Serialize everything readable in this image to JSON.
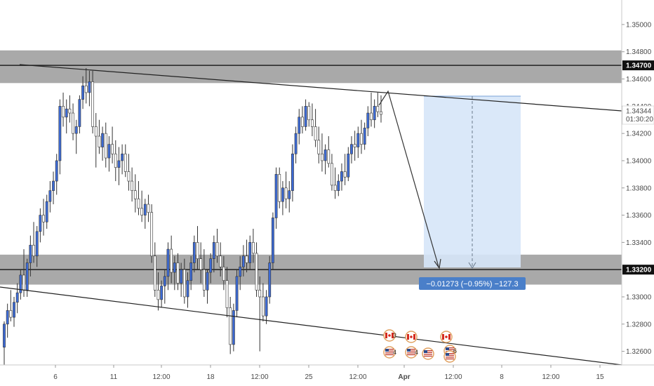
{
  "chart_data": {
    "type": "candlestick",
    "x_labels": [
      "6",
      "11",
      "12:00",
      "18",
      "12:00",
      "25",
      "12:00",
      "Apr",
      "12:00",
      "8",
      "12:00",
      "15"
    ],
    "y_ticks": [
      "1.35000",
      "1.34800",
      "1.34600",
      "1.34400",
      "1.34200",
      "1.34000",
      "1.33800",
      "1.33600",
      "1.33400",
      "1.33000",
      "1.32800",
      "1.32600"
    ],
    "ylim": [
      1.325,
      1.3518
    ],
    "resistance_zone": [
      1.3457,
      1.3481
    ],
    "support_zone": [
      1.3309,
      1.3331
    ],
    "resistance_line": 1.347,
    "support_line": 1.332,
    "resistance_label": "1.34700",
    "support_label": "1.33200",
    "current_price_label": "1.34344",
    "countdown_label": "01:30:20",
    "position_box_label": "−0.01273 (−0.95%) −127.3",
    "event_counts": [
      "3",
      "4",
      "4",
      "6"
    ],
    "colors": {
      "up": "#3d6bd6",
      "down": "#4a4a4a",
      "zone": "#8c8c8c",
      "target_box": "#d6e6f8",
      "label_box": "#4a7fc9",
      "price_label_bg": "#111111"
    }
  },
  "candles": [
    [
      1.3263,
      1.3282,
      1.325,
      1.328
    ],
    [
      1.328,
      1.3295,
      1.327,
      1.329
    ],
    [
      1.329,
      1.3305,
      1.3282,
      1.3285
    ],
    [
      1.3285,
      1.33,
      1.3278,
      1.3296
    ],
    [
      1.3296,
      1.331,
      1.3288,
      1.3303
    ],
    [
      1.3303,
      1.332,
      1.3298,
      1.3316
    ],
    [
      1.3316,
      1.3335,
      1.33,
      1.3305
    ],
    [
      1.3305,
      1.3328,
      1.33,
      1.3325
    ],
    [
      1.3325,
      1.3345,
      1.3315,
      1.3338
    ],
    [
      1.3338,
      1.3355,
      1.3325,
      1.333
    ],
    [
      1.333,
      1.3352,
      1.3322,
      1.3348
    ],
    [
      1.3348,
      1.3365,
      1.334,
      1.336
    ],
    [
      1.336,
      1.3372,
      1.3345,
      1.3355
    ],
    [
      1.3355,
      1.3375,
      1.335,
      1.337
    ],
    [
      1.337,
      1.3385,
      1.3362,
      1.3378
    ],
    [
      1.3378,
      1.3392,
      1.3368,
      1.3385
    ],
    [
      1.3385,
      1.3405,
      1.3375,
      1.34
    ],
    [
      1.34,
      1.3445,
      1.339,
      1.344
    ],
    [
      1.344,
      1.345,
      1.3425,
      1.3432
    ],
    [
      1.3432,
      1.3445,
      1.342,
      1.3438
    ],
    [
      1.3438,
      1.3448,
      1.3428,
      1.3435
    ],
    [
      1.3435,
      1.3442,
      1.3415,
      1.342
    ],
    [
      1.342,
      1.343,
      1.3405,
      1.3425
    ],
    [
      1.3425,
      1.3448,
      1.342,
      1.3445
    ],
    [
      1.3445,
      1.3462,
      1.3438,
      1.3455
    ],
    [
      1.3455,
      1.3468,
      1.3442,
      1.345
    ],
    [
      1.345,
      1.3466,
      1.344,
      1.3458
    ],
    [
      1.3458,
      1.3466,
      1.342,
      1.3425
    ],
    [
      1.3425,
      1.3435,
      1.3395,
      1.3418
    ],
    [
      1.3418,
      1.343,
      1.3405,
      1.341
    ],
    [
      1.341,
      1.3425,
      1.34,
      1.342
    ],
    [
      1.342,
      1.3428,
      1.3395,
      1.3402
    ],
    [
      1.3402,
      1.3418,
      1.3392,
      1.3412
    ],
    [
      1.3412,
      1.3425,
      1.3398,
      1.3405
    ],
    [
      1.3405,
      1.3415,
      1.3385,
      1.3395
    ],
    [
      1.3395,
      1.341,
      1.3382,
      1.34
    ],
    [
      1.34,
      1.3412,
      1.339,
      1.3405
    ],
    [
      1.3405,
      1.3412,
      1.3388,
      1.3392
    ],
    [
      1.3392,
      1.3405,
      1.3378,
      1.3385
    ],
    [
      1.3385,
      1.3395,
      1.337,
      1.3378
    ],
    [
      1.3378,
      1.339,
      1.3362,
      1.3372
    ],
    [
      1.3372,
      1.3385,
      1.336,
      1.3365
    ],
    [
      1.3365,
      1.3378,
      1.3355,
      1.336
    ],
    [
      1.336,
      1.3372,
      1.335,
      1.3368
    ],
    [
      1.3368,
      1.3375,
      1.3355,
      1.3362
    ],
    [
      1.3362,
      1.3368,
      1.3325,
      1.333
    ],
    [
      1.333,
      1.334,
      1.33,
      1.3305
    ],
    [
      1.3305,
      1.3318,
      1.329,
      1.3298
    ],
    [
      1.3298,
      1.3312,
      1.3292,
      1.3308
    ],
    [
      1.3308,
      1.332,
      1.3295,
      1.3315
    ],
    [
      1.3315,
      1.334,
      1.3305,
      1.3335
    ],
    [
      1.3335,
      1.3345,
      1.331,
      1.3318
    ],
    [
      1.3318,
      1.333,
      1.3305,
      1.3325
    ],
    [
      1.3325,
      1.3332,
      1.3305,
      1.331
    ],
    [
      1.331,
      1.3325,
      1.33,
      1.332
    ],
    [
      1.332,
      1.3328,
      1.3295,
      1.33
    ],
    [
      1.33,
      1.3318,
      1.3292,
      1.3312
    ],
    [
      1.3312,
      1.333,
      1.3305,
      1.3325
    ],
    [
      1.3325,
      1.3345,
      1.3318,
      1.334
    ],
    [
      1.334,
      1.3352,
      1.332,
      1.3328
    ],
    [
      1.3328,
      1.334,
      1.331,
      1.332
    ],
    [
      1.332,
      1.3335,
      1.33,
      1.3305
    ],
    [
      1.3305,
      1.332,
      1.3295,
      1.3318
    ],
    [
      1.3318,
      1.3332,
      1.331,
      1.3328
    ],
    [
      1.3328,
      1.3345,
      1.3318,
      1.334
    ],
    [
      1.334,
      1.335,
      1.3325,
      1.333
    ],
    [
      1.333,
      1.334,
      1.3315,
      1.3322
    ],
    [
      1.3322,
      1.333,
      1.3305,
      1.3312
    ],
    [
      1.3312,
      1.3322,
      1.3285,
      1.3292
    ],
    [
      1.3292,
      1.33,
      1.3258,
      1.3265
    ],
    [
      1.3265,
      1.3295,
      1.326,
      1.329
    ],
    [
      1.329,
      1.332,
      1.3285,
      1.3315
    ],
    [
      1.3315,
      1.333,
      1.3305,
      1.3322
    ],
    [
      1.3322,
      1.3338,
      1.3315,
      1.333
    ],
    [
      1.333,
      1.3342,
      1.3318,
      1.3325
    ],
    [
      1.3325,
      1.3345,
      1.332,
      1.334
    ],
    [
      1.334,
      1.335,
      1.3325,
      1.3332
    ],
    [
      1.3332,
      1.334,
      1.33,
      1.3305
    ],
    [
      1.3305,
      1.3315,
      1.326,
      1.33
    ],
    [
      1.33,
      1.331,
      1.3282,
      1.3286
    ],
    [
      1.3286,
      1.3305,
      1.328,
      1.33
    ],
    [
      1.33,
      1.333,
      1.3295,
      1.3325
    ],
    [
      1.3325,
      1.3362,
      1.332,
      1.3358
    ],
    [
      1.3358,
      1.3395,
      1.335,
      1.339
    ],
    [
      1.339,
      1.3395,
      1.3365,
      1.337
    ],
    [
      1.337,
      1.3385,
      1.336,
      1.338
    ],
    [
      1.338,
      1.3392,
      1.3365,
      1.3372
    ],
    [
      1.3372,
      1.3385,
      1.3362,
      1.3378
    ],
    [
      1.3378,
      1.3412,
      1.337,
      1.3405
    ],
    [
      1.3405,
      1.3425,
      1.3398,
      1.342
    ],
    [
      1.342,
      1.3438,
      1.3412,
      1.3432
    ],
    [
      1.3432,
      1.344,
      1.342,
      1.3425
    ],
    [
      1.3425,
      1.3445,
      1.3422,
      1.344
    ],
    [
      1.344,
      1.3443,
      1.3425,
      1.343
    ],
    [
      1.343,
      1.3442,
      1.3418,
      1.3425
    ],
    [
      1.3425,
      1.3438,
      1.341,
      1.3415
    ],
    [
      1.3415,
      1.3425,
      1.3398,
      1.3405
    ],
    [
      1.3405,
      1.342,
      1.3392,
      1.34
    ],
    [
      1.34,
      1.3412,
      1.339,
      1.3408
    ],
    [
      1.3408,
      1.3418,
      1.3395,
      1.3398
    ],
    [
      1.3398,
      1.3405,
      1.3378,
      1.3382
    ],
    [
      1.3382,
      1.3395,
      1.3372,
      1.3378
    ],
    [
      1.3378,
      1.339,
      1.3374,
      1.3385
    ],
    [
      1.3385,
      1.3398,
      1.3378,
      1.3392
    ],
    [
      1.3392,
      1.3405,
      1.3382,
      1.3388
    ],
    [
      1.3388,
      1.341,
      1.3385,
      1.3405
    ],
    [
      1.3405,
      1.3418,
      1.3398,
      1.3412
    ],
    [
      1.3412,
      1.3422,
      1.34,
      1.341
    ],
    [
      1.341,
      1.3425,
      1.3402,
      1.342
    ],
    [
      1.342,
      1.343,
      1.3405,
      1.3412
    ],
    [
      1.3412,
      1.3428,
      1.3408,
      1.3424
    ],
    [
      1.3424,
      1.344,
      1.3418,
      1.3435
    ],
    [
      1.3435,
      1.345,
      1.3425,
      1.343
    ],
    [
      1.343,
      1.3445,
      1.3424,
      1.344
    ],
    [
      1.344,
      1.345,
      1.3432,
      1.3436
    ],
    [
      1.3436,
      1.3448,
      1.3428,
      1.3434
    ]
  ]
}
